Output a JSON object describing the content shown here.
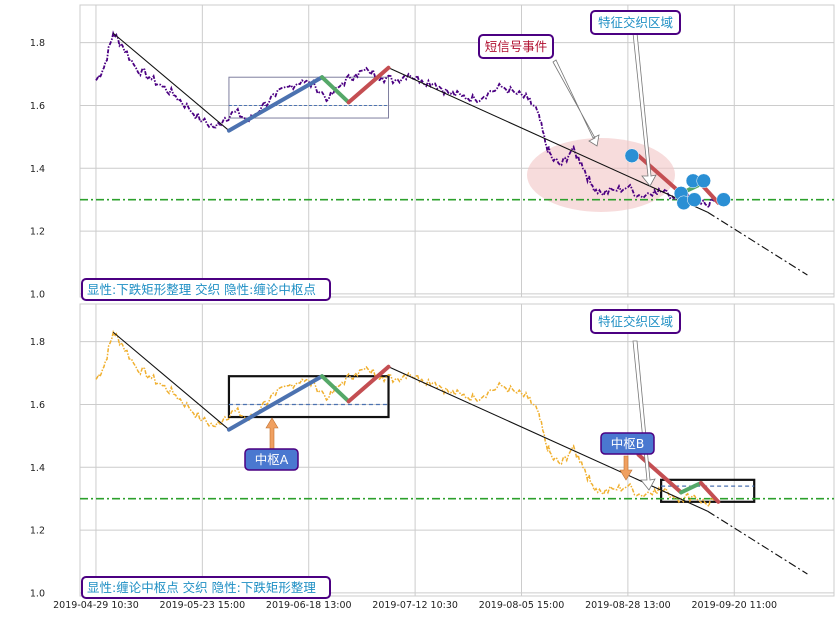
{
  "colors": {
    "price_top": "#4b0082",
    "price_bottom": "#f0b030",
    "threshold": "#2ca02c",
    "zs_up": "#4c72b0",
    "zs_green": "#55a868",
    "zs_red": "#c44e52",
    "event_dot": "#2a8fd4",
    "ellipse": "#f2c4c4",
    "box_border": "#4b0082",
    "label_blue": "#1f8fc4",
    "label_red": "#b01030",
    "center_label_bg": "#4a78d0",
    "center_label_text": "#ffffff",
    "center_arrow": "#f0a060"
  },
  "panels": [
    {
      "id": "top",
      "caption": "显性:下跌矩形整理 交织 隐性:缠论中枢点",
      "annotations": [
        {
          "id": "short-signal",
          "text": "短信号事件"
        },
        {
          "id": "feature-zone",
          "text": "特征交织区域"
        }
      ]
    },
    {
      "id": "bottom",
      "caption": "显性:缠论中枢点 交织 隐性:下跌矩形整理",
      "annotations": [
        {
          "id": "feature-zone",
          "text": "特征交织区域"
        },
        {
          "id": "center-a",
          "text": "中枢A"
        },
        {
          "id": "center-b",
          "text": "中枢B"
        }
      ]
    }
  ],
  "chart_data": {
    "type": "line",
    "x_tick_labels": [
      "2019-04-29 10:30",
      "2019-05-23 15:00",
      "2019-06-18 13:00",
      "2019-07-12 10:30",
      "2019-08-05 15:00",
      "2019-08-28 13:00",
      "2019-09-20 11:00"
    ],
    "y_ticks": [
      1.0,
      1.2,
      1.4,
      1.6,
      1.8
    ],
    "ylim": [
      0.99,
      1.92
    ],
    "xlim": [
      -1.2,
      55.5
    ],
    "grid": true,
    "threshold": 1.3,
    "price_anchors": [
      [
        0,
        1.68
      ],
      [
        0.6,
        1.72
      ],
      [
        1.3,
        1.83
      ],
      [
        2,
        1.79
      ],
      [
        3,
        1.72
      ],
      [
        4,
        1.69
      ],
      [
        5,
        1.66
      ],
      [
        6,
        1.63
      ],
      [
        7,
        1.59
      ],
      [
        8,
        1.55
      ],
      [
        9,
        1.53
      ],
      [
        9.7,
        1.56
      ],
      [
        10.5,
        1.58
      ],
      [
        11.5,
        1.55
      ],
      [
        12.5,
        1.6
      ],
      [
        13.5,
        1.63
      ],
      [
        14.5,
        1.66
      ],
      [
        15.5,
        1.68
      ],
      [
        16.5,
        1.66
      ],
      [
        17.5,
        1.62
      ],
      [
        18.5,
        1.67
      ],
      [
        19.5,
        1.7
      ],
      [
        20.5,
        1.71
      ],
      [
        21.5,
        1.69
      ],
      [
        22.5,
        1.68
      ],
      [
        23.5,
        1.7
      ],
      [
        24.5,
        1.68
      ],
      [
        25.5,
        1.67
      ],
      [
        26.5,
        1.64
      ],
      [
        27.5,
        1.63
      ],
      [
        28.5,
        1.62
      ],
      [
        29.5,
        1.64
      ],
      [
        30.5,
        1.66
      ],
      [
        31.5,
        1.64
      ],
      [
        32.5,
        1.62
      ],
      [
        33.2,
        1.58
      ],
      [
        33.8,
        1.48
      ],
      [
        34.3,
        1.43
      ],
      [
        35,
        1.41
      ],
      [
        35.8,
        1.46
      ],
      [
        36.5,
        1.42
      ],
      [
        37.2,
        1.35
      ],
      [
        38,
        1.32
      ],
      [
        39,
        1.33
      ],
      [
        40,
        1.34
      ],
      [
        41,
        1.31
      ],
      [
        42,
        1.33
      ],
      [
        43,
        1.32
      ],
      [
        44,
        1.3
      ],
      [
        45,
        1.31
      ],
      [
        46,
        1.28
      ],
      [
        46.5,
        1.3
      ]
    ],
    "trend_lines": [
      {
        "name": "下跌主线A",
        "points": [
          [
            1.3,
            1.83
          ],
          [
            10,
            1.52
          ]
        ]
      },
      {
        "name": "下跌主线B",
        "points": [
          [
            22,
            1.72
          ],
          [
            46,
            1.26
          ]
        ]
      },
      {
        "name": "下跌延伸",
        "points": [
          [
            46,
            1.26
          ],
          [
            53.5,
            1.06
          ]
        ]
      }
    ],
    "segments": [
      {
        "color": "zs_up",
        "points": [
          [
            10,
            1.52
          ],
          [
            17,
            1.69
          ]
        ]
      },
      {
        "color": "zs_green",
        "points": [
          [
            17,
            1.69
          ],
          [
            19,
            1.61
          ]
        ]
      },
      {
        "color": "zs_red",
        "points": [
          [
            19,
            1.61
          ],
          [
            22,
            1.72
          ]
        ]
      },
      {
        "color": "zs_red",
        "points": [
          [
            40.8,
            1.44
          ],
          [
            44,
            1.32
          ]
        ]
      },
      {
        "color": "zs_green",
        "points": [
          [
            44,
            1.32
          ],
          [
            45.5,
            1.35
          ]
        ]
      },
      {
        "color": "zs_red",
        "points": [
          [
            45.5,
            1.35
          ],
          [
            46.8,
            1.29
          ]
        ]
      }
    ],
    "center_A": {
      "x": [
        10,
        22
      ],
      "y_low": 1.56,
      "y_high": 1.69,
      "mid": 1.6
    },
    "center_B": {
      "x": [
        42.5,
        49.5
      ],
      "y_low": 1.29,
      "y_high": 1.36,
      "mid": 1.34
    },
    "event_points": [
      [
        40.3,
        1.44
      ],
      [
        44,
        1.32
      ],
      [
        44.9,
        1.36
      ],
      [
        44.2,
        1.29
      ],
      [
        45.7,
        1.36
      ],
      [
        45,
        1.3
      ],
      [
        47.2,
        1.3
      ]
    ]
  }
}
